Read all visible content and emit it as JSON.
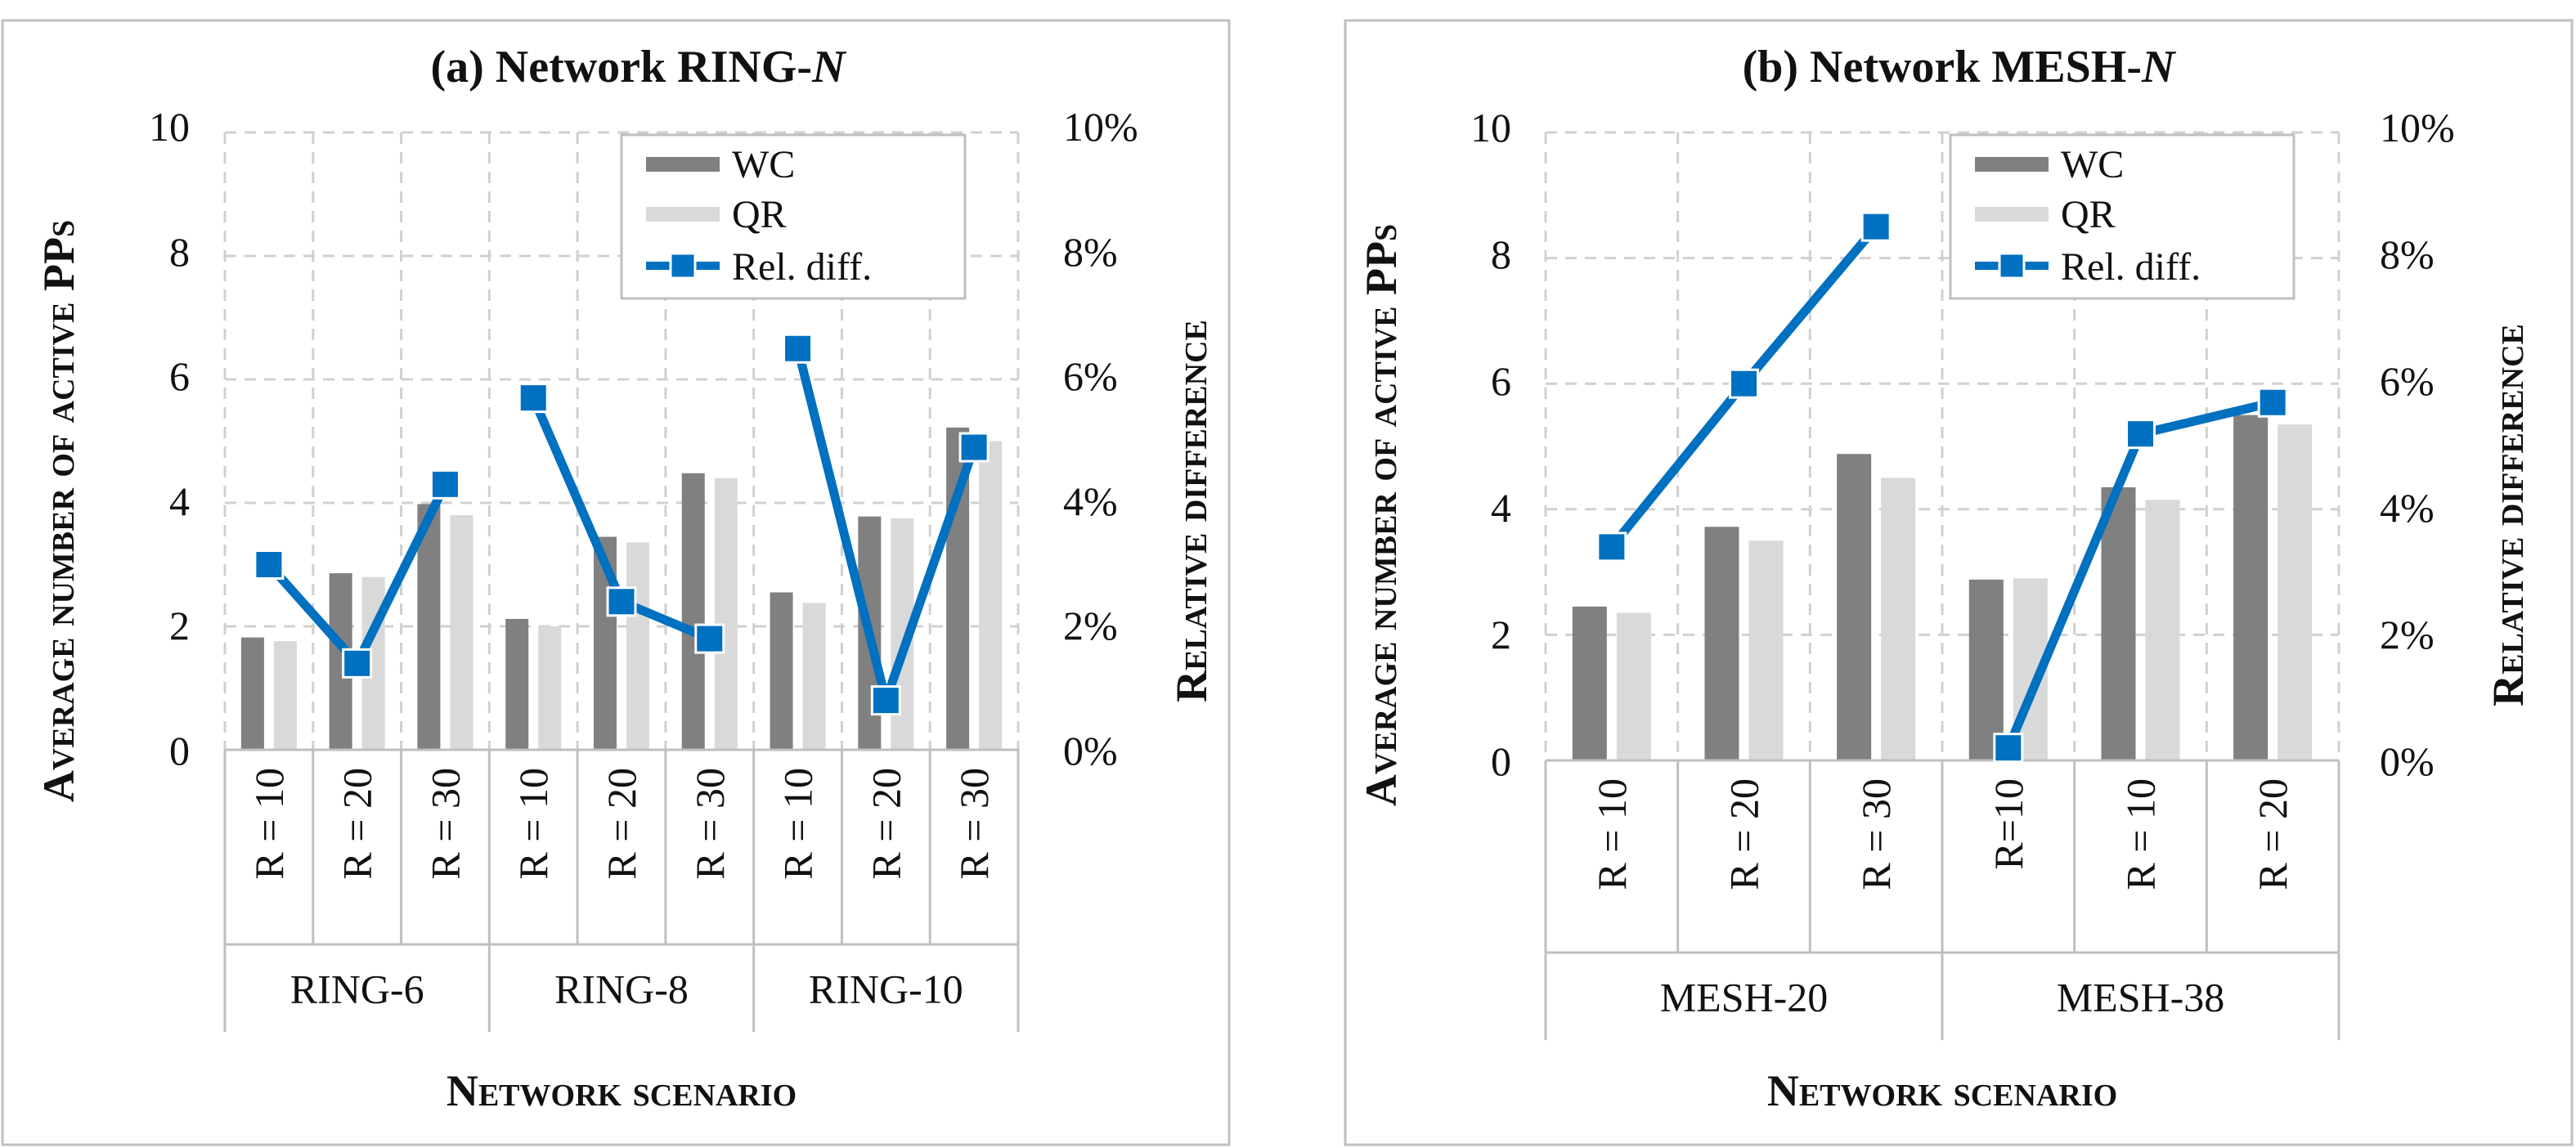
{
  "chart_data": [
    {
      "type": "bar",
      "title_prefix": "(a) Network RING-",
      "title_italic": "N",
      "ylabel": "Average number of active PPs",
      "y2label": "Relative difference",
      "xlabel": "Network scenario",
      "ylim": [
        0,
        10
      ],
      "yticks": [
        "0",
        "2",
        "4",
        "6",
        "8",
        "10"
      ],
      "y2lim": [
        0,
        10
      ],
      "y2ticks": [
        "0%",
        "2%",
        "4%",
        "6%",
        "8%",
        "10%"
      ],
      "groups": [
        {
          "label": "RING-6",
          "categories": [
            "R = 10",
            "R = 20",
            "R = 30"
          ]
        },
        {
          "label": "RING-8",
          "categories": [
            "R = 10",
            "R = 20",
            "R = 30"
          ]
        },
        {
          "label": "RING-10",
          "categories": [
            "R = 10",
            "R = 20",
            "R = 30"
          ]
        }
      ],
      "series": [
        {
          "name": "WC",
          "kind": "bar",
          "color": "#808080",
          "values": [
            1.82,
            2.86,
            3.98,
            2.12,
            3.45,
            4.48,
            2.55,
            3.78,
            5.22
          ]
        },
        {
          "name": "QR",
          "kind": "bar",
          "color": "#d9d9d9",
          "values": [
            1.76,
            2.8,
            3.8,
            2.0,
            3.36,
            4.4,
            2.38,
            3.75,
            5.0
          ]
        },
        {
          "name": "Rel. diff.",
          "kind": "line",
          "axis": "secondary",
          "unit": "%",
          "color": "#0070c0",
          "values": [
            3.0,
            1.4,
            4.3,
            5.7,
            2.4,
            1.8,
            6.5,
            0.8,
            4.9
          ]
        }
      ],
      "legend_position": "top-right",
      "grid": true
    },
    {
      "type": "bar",
      "title_prefix": "(b) Network MESH-",
      "title_italic": "N",
      "ylabel": "Average number of active PPs",
      "y2label": "Relative difference",
      "xlabel": "Network scenario",
      "ylim": [
        0,
        10
      ],
      "yticks": [
        "0",
        "2",
        "4",
        "6",
        "8",
        "10"
      ],
      "y2lim": [
        0,
        10
      ],
      "y2ticks": [
        "0%",
        "2%",
        "4%",
        "6%",
        "8%",
        "10%"
      ],
      "groups": [
        {
          "label": "MESH-20",
          "categories": [
            "R = 10",
            "R = 20",
            "R = 30"
          ]
        },
        {
          "label": "MESH-38",
          "categories": [
            "R=10",
            "R = 10",
            "R = 20"
          ]
        }
      ],
      "series": [
        {
          "name": "WC",
          "kind": "bar",
          "color": "#808080",
          "values": [
            2.45,
            3.72,
            4.88,
            2.88,
            4.35,
            5.5
          ]
        },
        {
          "name": "QR",
          "kind": "bar",
          "color": "#d9d9d9",
          "values": [
            2.35,
            3.5,
            4.5,
            2.9,
            4.15,
            5.35
          ]
        },
        {
          "name": "Rel. diff.",
          "kind": "line",
          "axis": "secondary",
          "unit": "%",
          "color": "#0070c0",
          "values": [
            3.4,
            6.0,
            8.5,
            0.2,
            5.2,
            5.7
          ]
        }
      ],
      "legend_position": "top-right",
      "grid": true
    }
  ]
}
